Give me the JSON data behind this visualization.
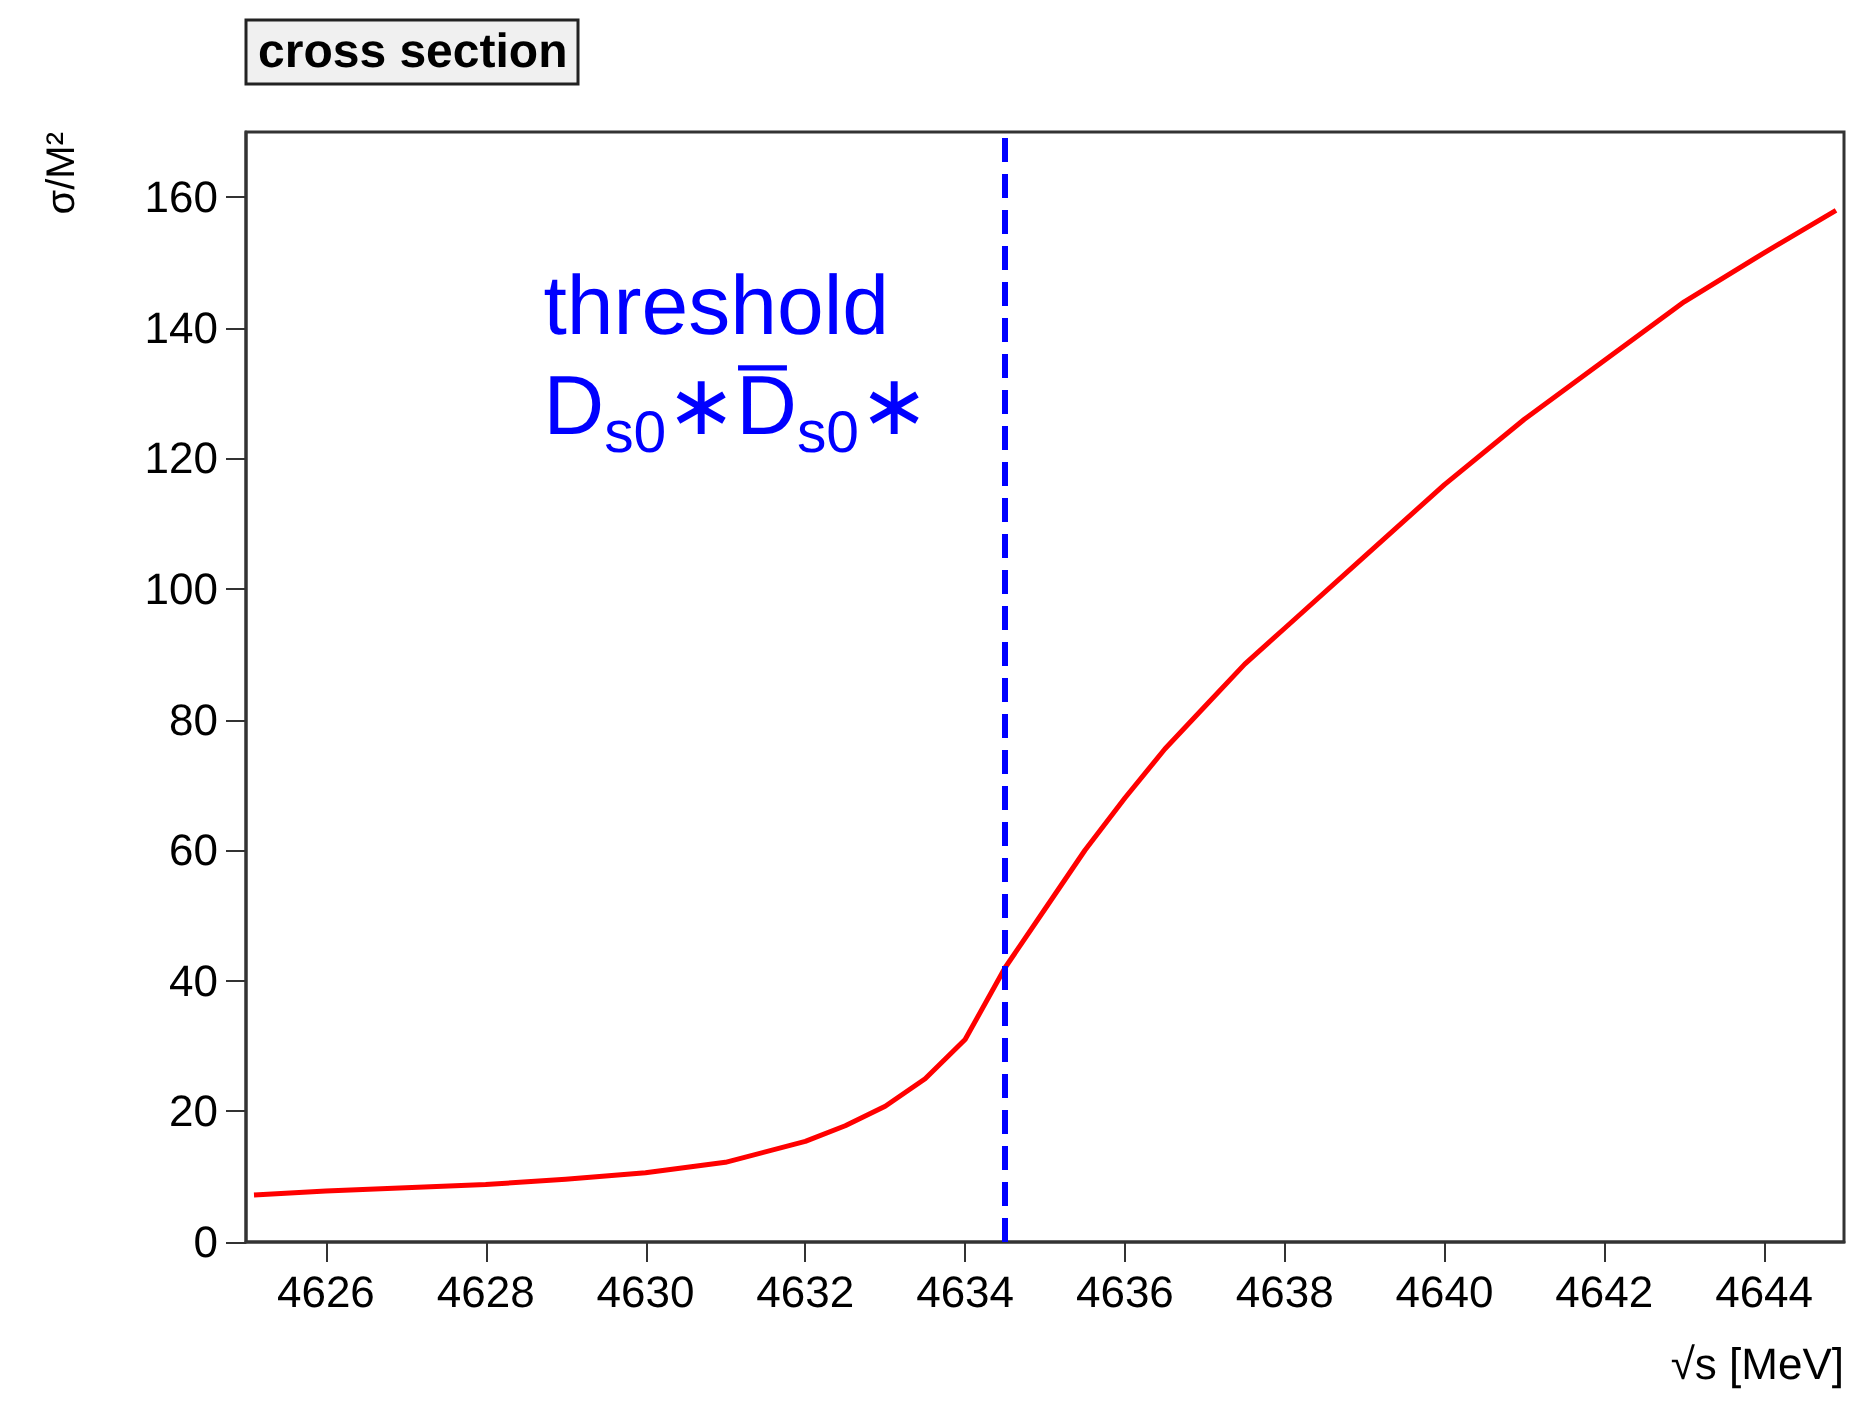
{
  "chart_data": {
    "type": "line",
    "title": "cross section",
    "xlabel": "√s [MeV]",
    "ylabel": "σ/M²",
    "x": [
      4625.1,
      4626,
      4627,
      4628,
      4629,
      4630,
      4631,
      4632,
      4632.5,
      4633,
      4633.5,
      4634,
      4634.5,
      4635,
      4635.5,
      4636,
      4636.5,
      4637,
      4637.5,
      4638,
      4639,
      4640,
      4641,
      4642,
      4643,
      4644,
      4644.9
    ],
    "series": [
      {
        "color": "#ff0000",
        "values": [
          7.2,
          7.8,
          8.3,
          8.8,
          9.6,
          10.6,
          12.2,
          15.4,
          17.8,
          20.8,
          25,
          31,
          42,
          51,
          60,
          68,
          75.5,
          82,
          88.5,
          94,
          105,
          116,
          126,
          135,
          144,
          151.5,
          158
        ]
      }
    ],
    "xlim": [
      4625,
      4645
    ],
    "xticks": [
      4626,
      4628,
      4630,
      4632,
      4634,
      4636,
      4638,
      4640,
      4642,
      4644
    ],
    "ylim": [
      0,
      170
    ],
    "yticks": [
      0,
      20,
      40,
      60,
      80,
      100,
      120,
      140,
      160
    ],
    "ref_lines": [
      {
        "axis": "x",
        "value": 4634.5,
        "label": "threshold\nD$_{s0}$∗D̅$_{s0}$∗",
        "color": "#0000ff",
        "line_style": "dashed"
      }
    ],
    "grid": false,
    "marker": "none",
    "line_style": "solid"
  }
}
